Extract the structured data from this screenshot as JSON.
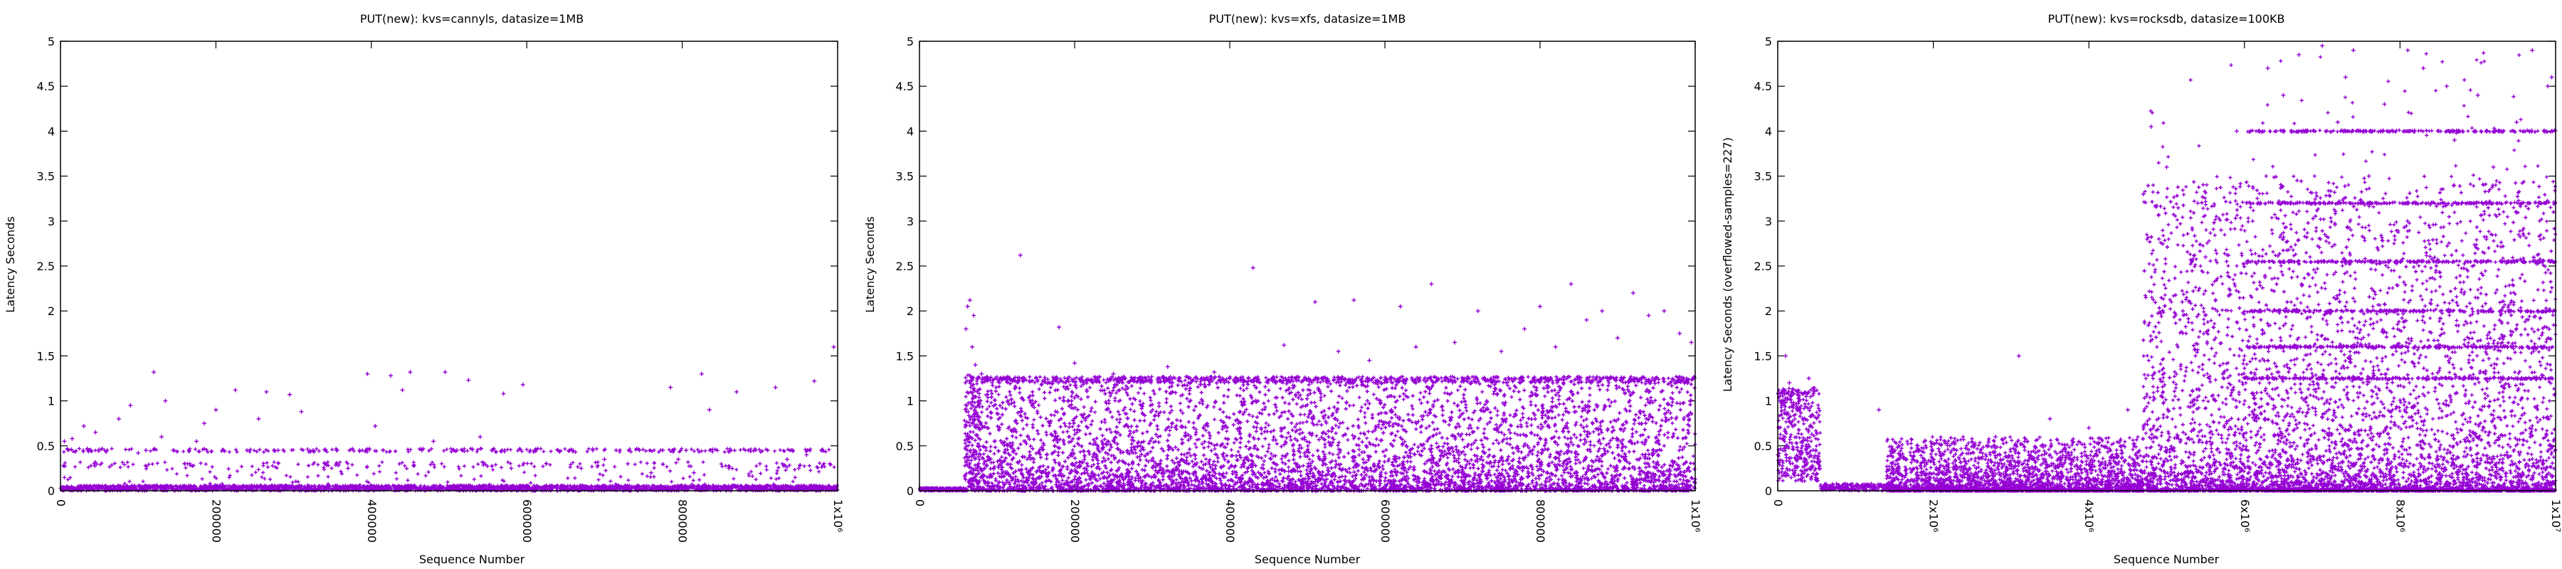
{
  "chart_data": [
    {
      "type": "scatter",
      "title": "PUT(new): kvs=cannyls, datasize=1MB",
      "xlabel": "Sequence Number",
      "ylabel": "Latency Seconds",
      "xlim": [
        0,
        1000000
      ],
      "ylim": [
        0,
        5
      ],
      "x_ticks": [
        {
          "value": 0,
          "label": "0"
        },
        {
          "value": 200000,
          "label": "200000"
        },
        {
          "value": 400000,
          "label": "400000"
        },
        {
          "value": 600000,
          "label": "600000"
        },
        {
          "value": 800000,
          "label": "800000"
        },
        {
          "value": 1000000,
          "label": "1x10⁶"
        }
      ],
      "y_ticks": [
        {
          "value": 0,
          "label": "0"
        },
        {
          "value": 0.5,
          "label": "0.5"
        },
        {
          "value": 1,
          "label": "1"
        },
        {
          "value": 1.5,
          "label": "1.5"
        },
        {
          "value": 2,
          "label": "2"
        },
        {
          "value": 2.5,
          "label": "2.5"
        },
        {
          "value": 3,
          "label": "3"
        },
        {
          "value": 3.5,
          "label": "3.5"
        },
        {
          "value": 4,
          "label": "4"
        },
        {
          "value": 4.5,
          "label": "4.5"
        },
        {
          "value": 5,
          "label": "5"
        }
      ],
      "color": "#9400d3",
      "grid": false,
      "series": [
        {
          "points": [
            [
              5000,
              0.55
            ],
            [
              15000,
              0.58
            ],
            [
              30000,
              0.72
            ],
            [
              45000,
              0.65
            ],
            [
              60000,
              0.45
            ],
            [
              75000,
              0.8
            ],
            [
              90000,
              0.95
            ],
            [
              100000,
              0.42
            ],
            [
              110000,
              0.45
            ],
            [
              120000,
              1.32
            ],
            [
              130000,
              0.6
            ],
            [
              135000,
              1.0
            ],
            [
              145000,
              0.45
            ],
            [
              160000,
              0.3
            ],
            [
              175000,
              0.55
            ],
            [
              185000,
              0.75
            ],
            [
              200000,
              0.9
            ],
            [
              210000,
              0.45
            ],
            [
              225000,
              1.12
            ],
            [
              240000,
              0.45
            ],
            [
              255000,
              0.8
            ],
            [
              265000,
              1.1
            ],
            [
              280000,
              0.45
            ],
            [
              295000,
              1.07
            ],
            [
              310000,
              0.88
            ],
            [
              325000,
              0.45
            ],
            [
              340000,
              0.3
            ],
            [
              355000,
              0.45
            ],
            [
              370000,
              0.25
            ],
            [
              385000,
              0.45
            ],
            [
              395000,
              1.3
            ],
            [
              405000,
              0.72
            ],
            [
              415000,
              0.45
            ],
            [
              425000,
              1.28
            ],
            [
              440000,
              1.12
            ],
            [
              450000,
              1.32
            ],
            [
              465000,
              0.45
            ],
            [
              480000,
              0.55
            ],
            [
              495000,
              1.32
            ],
            [
              510000,
              0.45
            ],
            [
              525000,
              1.23
            ],
            [
              540000,
              0.6
            ],
            [
              555000,
              0.45
            ],
            [
              570000,
              1.08
            ],
            [
              580000,
              0.25
            ],
            [
              595000,
              1.18
            ],
            [
              610000,
              0.45
            ],
            [
              625000,
              0.3
            ],
            [
              640000,
              0.45
            ],
            [
              655000,
              0.45
            ],
            [
              670000,
              0.25
            ],
            [
              685000,
              0.45
            ],
            [
              700000,
              0.35
            ],
            [
              715000,
              0.45
            ],
            [
              730000,
              0.3
            ],
            [
              745000,
              0.45
            ],
            [
              760000,
              0.2
            ],
            [
              775000,
              0.45
            ],
            [
              785000,
              1.15
            ],
            [
              795000,
              0.35
            ],
            [
              805000,
              0.45
            ],
            [
              815000,
              0.2
            ],
            [
              825000,
              1.3
            ],
            [
              835000,
              0.9
            ],
            [
              845000,
              0.45
            ],
            [
              860000,
              0.25
            ],
            [
              870000,
              1.1
            ],
            [
              885000,
              0.45
            ],
            [
              900000,
              0.3
            ],
            [
              910000,
              0.45
            ],
            [
              920000,
              1.15
            ],
            [
              935000,
              0.35
            ],
            [
              950000,
              0.25
            ],
            [
              960000,
              0.4
            ],
            [
              970000,
              1.22
            ],
            [
              980000,
              0.45
            ],
            [
              990000,
              0.3
            ],
            [
              995000,
              1.6
            ]
          ]
        }
      ]
    },
    {
      "type": "scatter",
      "title": "PUT(new): kvs=xfs, datasize=1MB",
      "xlabel": "Sequence Number",
      "ylabel": "Latency Seconds",
      "xlim": [
        0,
        1000000
      ],
      "ylim": [
        0,
        5
      ],
      "x_ticks": [
        {
          "value": 0,
          "label": "0"
        },
        {
          "value": 200000,
          "label": "200000"
        },
        {
          "value": 400000,
          "label": "400000"
        },
        {
          "value": 600000,
          "label": "600000"
        },
        {
          "value": 800000,
          "label": "800000"
        },
        {
          "value": 1000000,
          "label": "1x10⁶"
        }
      ],
      "y_ticks": [
        {
          "value": 0,
          "label": "0"
        },
        {
          "value": 0.5,
          "label": "0.5"
        },
        {
          "value": 1,
          "label": "1"
        },
        {
          "value": 1.5,
          "label": "1.5"
        },
        {
          "value": 2,
          "label": "2"
        },
        {
          "value": 2.5,
          "label": "2.5"
        },
        {
          "value": 3,
          "label": "3"
        },
        {
          "value": 3.5,
          "label": "3.5"
        },
        {
          "value": 4,
          "label": "4"
        },
        {
          "value": 4.5,
          "label": "4.5"
        },
        {
          "value": 5,
          "label": "5"
        }
      ],
      "color": "#9400d3",
      "grid": false,
      "series": [
        {
          "points": [
            [
              60000,
              1.8
            ],
            [
              62000,
              2.05
            ],
            [
              65000,
              2.12
            ],
            [
              68000,
              1.6
            ],
            [
              70000,
              1.95
            ],
            [
              72000,
              1.4
            ],
            [
              75000,
              1.25
            ],
            [
              80000,
              1.3
            ],
            [
              130000,
              2.62
            ],
            [
              180000,
              1.82
            ],
            [
              200000,
              1.42
            ],
            [
              250000,
              1.3
            ],
            [
              320000,
              1.38
            ],
            [
              380000,
              1.32
            ],
            [
              430000,
              2.48
            ],
            [
              470000,
              1.62
            ],
            [
              510000,
              2.1
            ],
            [
              540000,
              1.55
            ],
            [
              560000,
              2.12
            ],
            [
              580000,
              1.45
            ],
            [
              620000,
              2.05
            ],
            [
              640000,
              1.6
            ],
            [
              660000,
              2.3
            ],
            [
              690000,
              1.65
            ],
            [
              720000,
              2.0
            ],
            [
              750000,
              1.55
            ],
            [
              780000,
              1.8
            ],
            [
              800000,
              2.05
            ],
            [
              820000,
              1.6
            ],
            [
              840000,
              2.3
            ],
            [
              860000,
              1.9
            ],
            [
              880000,
              2.0
            ],
            [
              900000,
              1.7
            ],
            [
              920000,
              2.2
            ],
            [
              940000,
              1.95
            ],
            [
              960000,
              2.0
            ],
            [
              980000,
              1.75
            ],
            [
              995000,
              1.65
            ]
          ]
        }
      ]
    },
    {
      "type": "scatter",
      "title": "PUT(new): kvs=rocksdb, datasize=100KB",
      "xlabel": "Sequence Number",
      "ylabel": "Latency Seconds (overflowed-samples=227)",
      "xlim": [
        0,
        10000000
      ],
      "ylim": [
        0,
        5
      ],
      "x_ticks": [
        {
          "value": 0,
          "label": "0"
        },
        {
          "value": 2000000,
          "label": "2x10⁶"
        },
        {
          "value": 4000000,
          "label": "4x10⁶"
        },
        {
          "value": 6000000,
          "label": "6x10⁶"
        },
        {
          "value": 8000000,
          "label": "8x10⁶"
        },
        {
          "value": 10000000,
          "label": "1x10⁷"
        }
      ],
      "y_ticks": [
        {
          "value": 0,
          "label": "0"
        },
        {
          "value": 0.5,
          "label": "0.5"
        },
        {
          "value": 1,
          "label": "1"
        },
        {
          "value": 1.5,
          "label": "1.5"
        },
        {
          "value": 2,
          "label": "2"
        },
        {
          "value": 2.5,
          "label": "2.5"
        },
        {
          "value": 3,
          "label": "3"
        },
        {
          "value": 3.5,
          "label": "3.5"
        },
        {
          "value": 4,
          "label": "4"
        },
        {
          "value": 4.5,
          "label": "4.5"
        },
        {
          "value": 5,
          "label": "5"
        }
      ],
      "color": "#9400d3",
      "grid": false,
      "series": [
        {
          "points": [
            [
              100000,
              1.5
            ],
            [
              150000,
              1.2
            ],
            [
              250000,
              1.1
            ],
            [
              400000,
              1.25
            ],
            [
              1300000,
              0.9
            ],
            [
              1800000,
              0.5
            ],
            [
              2300000,
              0.45
            ],
            [
              2800000,
              0.6
            ],
            [
              3100000,
              1.5
            ],
            [
              3500000,
              0.8
            ],
            [
              4000000,
              0.7
            ],
            [
              4500000,
              0.9
            ],
            [
              4700000,
              3.3
            ],
            [
              4800000,
              4.05
            ],
            [
              4900000,
              2.8
            ],
            [
              5000000,
              3.6
            ],
            [
              5200000,
              2.1
            ],
            [
              5400000,
              3.2
            ],
            [
              5500000,
              2.6
            ],
            [
              5700000,
              2.9
            ],
            [
              5900000,
              4.0
            ],
            [
              6000000,
              1.5
            ],
            [
              6300000,
              4.7
            ],
            [
              6500000,
              4.4
            ],
            [
              6700000,
              4.85
            ],
            [
              6800000,
              4.0
            ],
            [
              6900000,
              3.2
            ],
            [
              7000000,
              4.95
            ],
            [
              7200000,
              4.1
            ],
            [
              7300000,
              4.6
            ],
            [
              7400000,
              4.9
            ],
            [
              7600000,
              3.5
            ],
            [
              7800000,
              4.3
            ],
            [
              7900000,
              4.0
            ],
            [
              8000000,
              2.55
            ],
            [
              8100000,
              4.9
            ],
            [
              8300000,
              4.7
            ],
            [
              8400000,
              3.2
            ],
            [
              8500000,
              4.0
            ],
            [
              8600000,
              4.5
            ],
            [
              8700000,
              3.9
            ],
            [
              8800000,
              4.0
            ],
            [
              8900000,
              3.2
            ],
            [
              9000000,
              4.4
            ],
            [
              9200000,
              3.6
            ],
            [
              9300000,
              4.0
            ],
            [
              9500000,
              4.1
            ],
            [
              9600000,
              2.55
            ],
            [
              9700000,
              4.9
            ],
            [
              9800000,
              3.2
            ],
            [
              9900000,
              4.5
            ],
            [
              9950000,
              4.6
            ]
          ]
        }
      ]
    }
  ]
}
